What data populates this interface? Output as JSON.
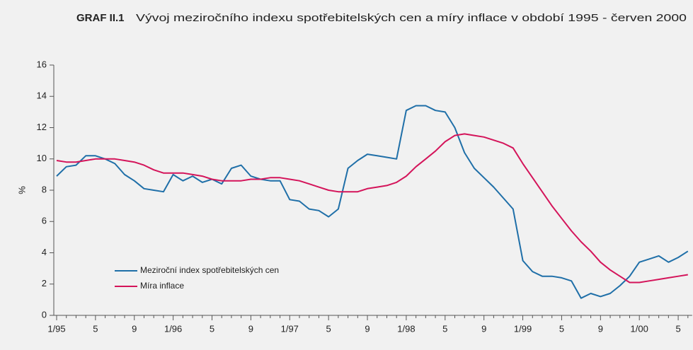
{
  "chart_data": {
    "type": "line",
    "label": "GRAF II.1",
    "title": "Vývoj meziročního indexu spotřebitelských cen a míry inflace v období 1995 - červen 2000",
    "y_label": "%",
    "categories": [
      "1/95",
      null,
      null,
      null,
      "5",
      null,
      null,
      null,
      "9",
      null,
      null,
      null,
      "1/96",
      null,
      null,
      null,
      "5",
      null,
      null,
      null,
      "9",
      null,
      null,
      null,
      "1/97",
      null,
      null,
      null,
      "5",
      null,
      null,
      null,
      "9",
      null,
      null,
      null,
      "1/98",
      null,
      null,
      null,
      "5",
      null,
      null,
      null,
      "9",
      null,
      null,
      null,
      "1/99",
      null,
      null,
      null,
      "5",
      null,
      null,
      null,
      "9",
      null,
      null,
      null,
      "1/00",
      null,
      null,
      null,
      "5",
      null
    ],
    "series": [
      {
        "name": "Meziroční index spotřebitelských cen",
        "color": "#1f6fa8",
        "values": [
          8.9,
          9.5,
          9.6,
          10.2,
          10.2,
          10.0,
          9.7,
          9.0,
          8.6,
          8.1,
          8.0,
          7.9,
          9.0,
          8.6,
          8.9,
          8.5,
          8.7,
          8.4,
          9.4,
          9.6,
          8.9,
          8.7,
          8.6,
          8.6,
          7.4,
          7.3,
          6.8,
          6.7,
          6.3,
          6.8,
          9.4,
          9.9,
          10.3,
          10.2,
          10.1,
          10.0,
          13.1,
          13.4,
          13.4,
          13.1,
          13.0,
          12.0,
          10.4,
          9.4,
          8.8,
          8.2,
          7.5,
          6.8,
          3.5,
          2.8,
          2.5,
          2.5,
          2.4,
          2.2,
          1.1,
          1.4,
          1.2,
          1.4,
          1.9,
          2.5,
          3.4,
          3.6,
          3.8,
          3.4,
          3.7,
          4.1
        ]
      },
      {
        "name": "Míra inflace",
        "color": "#d4145a",
        "values": [
          9.9,
          9.8,
          9.8,
          9.9,
          10.0,
          10.0,
          10.0,
          9.9,
          9.8,
          9.6,
          9.3,
          9.1,
          9.1,
          9.1,
          9.0,
          8.9,
          8.7,
          8.6,
          8.6,
          8.6,
          8.7,
          8.7,
          8.8,
          8.8,
          8.7,
          8.6,
          8.4,
          8.2,
          8.0,
          7.9,
          7.9,
          7.9,
          8.1,
          8.2,
          8.3,
          8.5,
          8.9,
          9.5,
          10.0,
          10.5,
          11.1,
          11.5,
          11.6,
          11.5,
          11.4,
          11.2,
          11.0,
          10.7,
          9.7,
          8.8,
          7.9,
          7.0,
          6.2,
          5.4,
          4.7,
          4.1,
          3.4,
          2.9,
          2.5,
          2.1,
          2.1,
          2.2,
          2.3,
          2.4,
          2.5,
          2.6
        ]
      }
    ],
    "ylim": [
      0,
      16
    ],
    "yticks": [
      0,
      2,
      4,
      6,
      8,
      10,
      12,
      14,
      16
    ],
    "grid": false
  }
}
